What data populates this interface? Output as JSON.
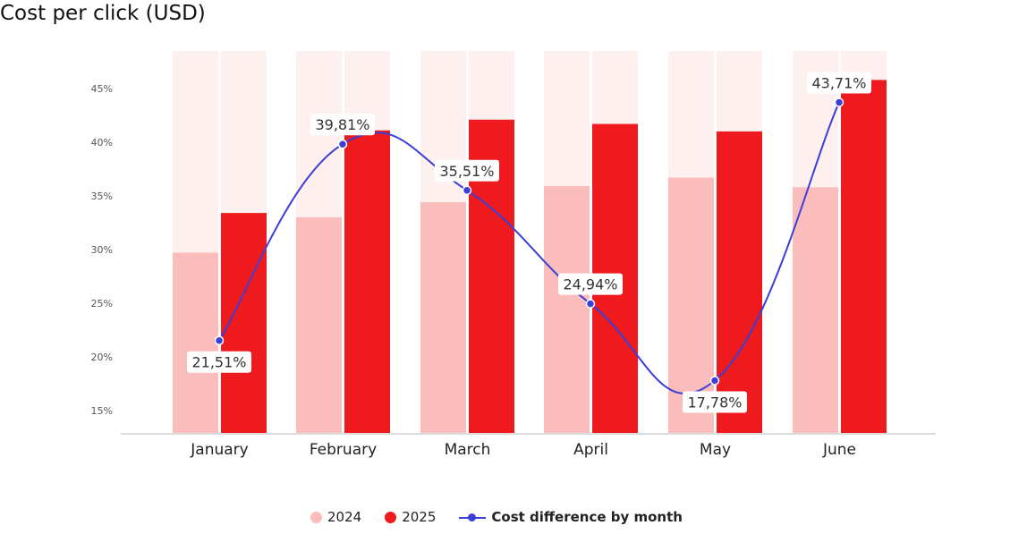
{
  "chart_data": {
    "type": "bar",
    "title": "Cost per click (USD)",
    "categories": [
      "January",
      "February",
      "March",
      "April",
      "May",
      "June"
    ],
    "ylim": [
      12.9,
      48.5
    ],
    "yticks": [
      15,
      20,
      25,
      30,
      35,
      40,
      45
    ],
    "ytick_labels": [
      "15%",
      "20%",
      "25%",
      "30%",
      "35%",
      "40%",
      "45%"
    ],
    "grid": false,
    "legend_position": "bottom",
    "series": [
      {
        "name": "2024",
        "type": "bar",
        "color": "#fbbcbc",
        "values": [
          29.7,
          33.0,
          34.4,
          35.9,
          36.7,
          35.8
        ]
      },
      {
        "name": "2025",
        "type": "bar",
        "color": "#ee1a1d",
        "values": [
          33.4,
          41.1,
          42.1,
          41.7,
          41.0,
          45.8
        ]
      },
      {
        "name": "Cost difference by month",
        "type": "line",
        "color": "#3b3fd8",
        "values": [
          21.51,
          39.81,
          35.51,
          24.94,
          17.78,
          43.71
        ],
        "labels": [
          "21,51%",
          "39,81%",
          "35,51%",
          "24,94%",
          "17,78%",
          "43,71%"
        ],
        "label_side": [
          "below",
          "above",
          "above",
          "above",
          "below",
          "above"
        ]
      }
    ],
    "background_bar_color": "#fff0f0"
  }
}
